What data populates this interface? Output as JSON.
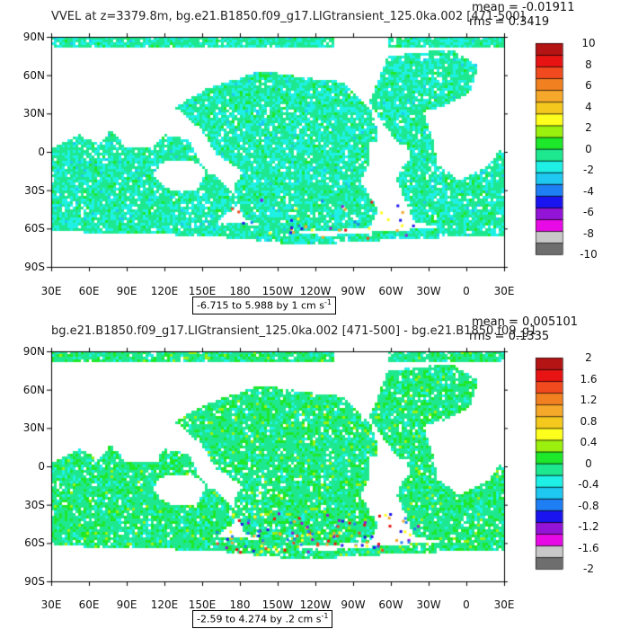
{
  "panels": [
    {
      "title": "VVEL at z=3379.8m, bg.e21.B1850.f09_g17.LIGtransient_125.0ka.002 [471-500]",
      "mean_label": "mean = -0.01911",
      "rms_label": "rms = 0.3419",
      "range_text": "-6.715 to 5.988 by 1 cm s",
      "range_sup": "-1",
      "colorbar_ticks": [
        "10",
        "8",
        "6",
        "4",
        "2",
        "0",
        "-2",
        "-4",
        "-6",
        "-8",
        "-10"
      ]
    },
    {
      "title": "bg.e21.B1850.f09_g17.LIGtransient_125.0ka.002 [471-500] - bg.e21.B1850.f09_g1",
      "mean_label": "mean = 0.005101",
      "rms_label": "rms = 0.1335",
      "range_text": "-2.59 to 4.274 by .2 cm s",
      "range_sup": "-1",
      "colorbar_ticks": [
        "2",
        "1.6",
        "1.2",
        "0.8",
        "0.4",
        "0",
        "-0.4",
        "-0.8",
        "-1.2",
        "-1.6",
        "-2"
      ]
    }
  ],
  "lat_labels": [
    "90N",
    "60N",
    "30N",
    "0",
    "30S",
    "60S",
    "90S"
  ],
  "lon_labels": [
    "30E",
    "60E",
    "90E",
    "120E",
    "150E",
    "180",
    "150W",
    "120W",
    "90W",
    "60W",
    "30W",
    "0",
    "30E"
  ],
  "colorbar_colors": [
    "#6e6e6e",
    "#c8c8c8",
    "#e80ae6",
    "#9314d6",
    "#1a14f0",
    "#1e7ff5",
    "#1ec8f0",
    "#1ef0e6",
    "#1ee88f",
    "#1ee82a",
    "#9bf00e",
    "#ffff1e",
    "#f5c81e",
    "#f5a82a",
    "#f08020",
    "#f04a1e",
    "#e81414",
    "#b41414"
  ],
  "colorbar_neutral": "#1ee88f",
  "colorbar_legend_note": "colors ordered bottom (most negative) to top (most positive)"
}
